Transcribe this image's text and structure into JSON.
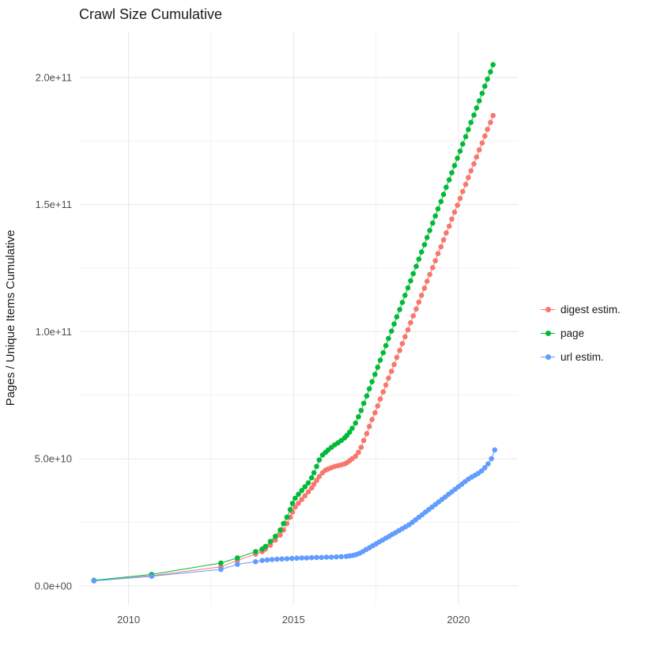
{
  "chart_data": {
    "type": "scatter",
    "title": "Crawl Size Cumulative",
    "xlabel": "",
    "ylabel": "Pages / Unique Items Cumulative",
    "y_scale_note": "all y point values and y tick values are in units of 1e9 (billions)",
    "xlim": [
      2008.5,
      2021.8
    ],
    "ylim": [
      -7.5,
      218
    ],
    "grid": true,
    "legend_position": "right",
    "colors": {
      "grid_major": "#E8E8E8",
      "grid_minor": "#F3F3F3",
      "background": "#FFFFFF",
      "tick_text": "#4D4D4D"
    },
    "x_ticks": [
      {
        "value": 2010,
        "label": "2010"
      },
      {
        "value": 2015,
        "label": "2015"
      },
      {
        "value": 2020,
        "label": "2020"
      }
    ],
    "x_minor_ticks": [
      2012.5,
      2017.5
    ],
    "y_ticks": [
      {
        "value": 0,
        "label": "0.0e+00"
      },
      {
        "value": 50,
        "label": "5.0e+10"
      },
      {
        "value": 100,
        "label": "1.0e+11"
      },
      {
        "value": 150,
        "label": "1.5e+11"
      },
      {
        "value": 200,
        "label": "2.0e+11"
      }
    ],
    "y_minor_ticks": [
      25,
      75,
      125,
      175
    ],
    "series": [
      {
        "name": "digest estim.",
        "color": "#F8766D",
        "points": [
          [
            2008.95,
            2.0
          ],
          [
            2010.7,
            4.0
          ],
          [
            2012.8,
            7.5
          ],
          [
            2013.3,
            10.0
          ],
          [
            2013.85,
            12.5
          ],
          [
            2014.05,
            13.5
          ],
          [
            2014.15,
            14.5
          ],
          [
            2014.3,
            16.0
          ],
          [
            2014.45,
            18.0
          ],
          [
            2014.6,
            20.0
          ],
          [
            2014.7,
            22.0
          ],
          [
            2014.8,
            24.5
          ],
          [
            2014.9,
            27.0
          ],
          [
            2014.97,
            29.0
          ],
          [
            2015.05,
            31.0
          ],
          [
            2015.15,
            32.5
          ],
          [
            2015.25,
            34.0
          ],
          [
            2015.35,
            35.5
          ],
          [
            2015.45,
            37.0
          ],
          [
            2015.55,
            38.5
          ],
          [
            2015.62,
            40.0
          ],
          [
            2015.7,
            41.5
          ],
          [
            2015.78,
            43.0
          ],
          [
            2015.88,
            44.5
          ],
          [
            2015.97,
            45.5
          ],
          [
            2016.05,
            46.0
          ],
          [
            2016.15,
            46.5
          ],
          [
            2016.25,
            47.0
          ],
          [
            2016.35,
            47.3
          ],
          [
            2016.45,
            47.6
          ],
          [
            2016.55,
            48.0
          ],
          [
            2016.62,
            48.5
          ],
          [
            2016.7,
            49.2
          ],
          [
            2016.78,
            50.0
          ],
          [
            2016.88,
            51.0
          ],
          [
            2016.97,
            52.5
          ],
          [
            2017.05,
            54.5
          ],
          [
            2017.13,
            57.2
          ],
          [
            2017.22,
            59.9
          ],
          [
            2017.3,
            62.7
          ],
          [
            2017.38,
            65.4
          ],
          [
            2017.47,
            68.1
          ],
          [
            2017.55,
            70.8
          ],
          [
            2017.63,
            73.5
          ],
          [
            2017.72,
            76.3
          ],
          [
            2017.8,
            79.0
          ],
          [
            2017.88,
            81.7
          ],
          [
            2017.97,
            84.4
          ],
          [
            2018.05,
            87.1
          ],
          [
            2018.13,
            89.9
          ],
          [
            2018.22,
            92.6
          ],
          [
            2018.3,
            95.3
          ],
          [
            2018.38,
            98.0
          ],
          [
            2018.47,
            100.7
          ],
          [
            2018.55,
            103.5
          ],
          [
            2018.63,
            106.2
          ],
          [
            2018.72,
            108.9
          ],
          [
            2018.8,
            111.6
          ],
          [
            2018.88,
            114.3
          ],
          [
            2018.97,
            117.1
          ],
          [
            2019.05,
            119.8
          ],
          [
            2019.13,
            122.5
          ],
          [
            2019.22,
            125.2
          ],
          [
            2019.3,
            127.9
          ],
          [
            2019.38,
            130.7
          ],
          [
            2019.47,
            133.4
          ],
          [
            2019.55,
            136.1
          ],
          [
            2019.63,
            138.8
          ],
          [
            2019.72,
            141.5
          ],
          [
            2019.8,
            144.3
          ],
          [
            2019.88,
            147.0
          ],
          [
            2019.97,
            149.7
          ],
          [
            2020.05,
            152.4
          ],
          [
            2020.13,
            155.1
          ],
          [
            2020.22,
            157.9
          ],
          [
            2020.3,
            160.6
          ],
          [
            2020.38,
            163.3
          ],
          [
            2020.47,
            166.0
          ],
          [
            2020.55,
            168.7
          ],
          [
            2020.63,
            171.5
          ],
          [
            2020.72,
            174.2
          ],
          [
            2020.8,
            176.9
          ],
          [
            2020.88,
            179.6
          ],
          [
            2020.97,
            182.3
          ],
          [
            2021.05,
            185.0
          ]
        ]
      },
      {
        "name": "page",
        "color": "#00BA38",
        "points": [
          [
            2008.95,
            2.2
          ],
          [
            2010.7,
            4.5
          ],
          [
            2012.8,
            9.0
          ],
          [
            2013.3,
            11.0
          ],
          [
            2013.85,
            13.5
          ],
          [
            2014.05,
            14.5
          ],
          [
            2014.15,
            15.5
          ],
          [
            2014.3,
            17.5
          ],
          [
            2014.45,
            19.5
          ],
          [
            2014.6,
            22.0
          ],
          [
            2014.7,
            24.5
          ],
          [
            2014.8,
            27.0
          ],
          [
            2014.9,
            30.0
          ],
          [
            2014.97,
            32.5
          ],
          [
            2015.05,
            34.5
          ],
          [
            2015.15,
            36.0
          ],
          [
            2015.25,
            37.5
          ],
          [
            2015.35,
            39.0
          ],
          [
            2015.45,
            40.5
          ],
          [
            2015.55,
            42.5
          ],
          [
            2015.62,
            44.5
          ],
          [
            2015.7,
            47.0
          ],
          [
            2015.78,
            49.5
          ],
          [
            2015.88,
            51.5
          ],
          [
            2015.97,
            52.5
          ],
          [
            2016.05,
            53.5
          ],
          [
            2016.15,
            54.5
          ],
          [
            2016.25,
            55.5
          ],
          [
            2016.35,
            56.3
          ],
          [
            2016.45,
            57.2
          ],
          [
            2016.55,
            58.2
          ],
          [
            2016.62,
            59.2
          ],
          [
            2016.7,
            60.5
          ],
          [
            2016.78,
            62.0
          ],
          [
            2016.88,
            64.0
          ],
          [
            2016.97,
            66.5
          ],
          [
            2017.05,
            69.0
          ],
          [
            2017.13,
            71.8
          ],
          [
            2017.22,
            74.7
          ],
          [
            2017.3,
            77.5
          ],
          [
            2017.38,
            80.3
          ],
          [
            2017.47,
            83.2
          ],
          [
            2017.55,
            86.0
          ],
          [
            2017.63,
            88.8
          ],
          [
            2017.72,
            91.7
          ],
          [
            2017.8,
            94.5
          ],
          [
            2017.88,
            97.3
          ],
          [
            2017.97,
            100.2
          ],
          [
            2018.05,
            103.0
          ],
          [
            2018.13,
            105.8
          ],
          [
            2018.22,
            108.7
          ],
          [
            2018.3,
            111.5
          ],
          [
            2018.38,
            114.3
          ],
          [
            2018.47,
            117.2
          ],
          [
            2018.55,
            120.0
          ],
          [
            2018.63,
            122.8
          ],
          [
            2018.72,
            125.7
          ],
          [
            2018.8,
            128.5
          ],
          [
            2018.88,
            131.3
          ],
          [
            2018.97,
            134.2
          ],
          [
            2019.05,
            137.0
          ],
          [
            2019.13,
            139.8
          ],
          [
            2019.22,
            142.7
          ],
          [
            2019.3,
            145.5
          ],
          [
            2019.38,
            148.3
          ],
          [
            2019.47,
            151.2
          ],
          [
            2019.55,
            154.0
          ],
          [
            2019.63,
            156.8
          ],
          [
            2019.72,
            159.7
          ],
          [
            2019.8,
            162.5
          ],
          [
            2019.88,
            165.3
          ],
          [
            2019.97,
            168.2
          ],
          [
            2020.05,
            171.0
          ],
          [
            2020.13,
            173.8
          ],
          [
            2020.22,
            176.7
          ],
          [
            2020.3,
            179.5
          ],
          [
            2020.38,
            182.3
          ],
          [
            2020.47,
            185.2
          ],
          [
            2020.55,
            188.0
          ],
          [
            2020.63,
            190.8
          ],
          [
            2020.72,
            193.7
          ],
          [
            2020.8,
            196.5
          ],
          [
            2020.88,
            199.3
          ],
          [
            2020.97,
            202.2
          ],
          [
            2021.05,
            205.0
          ]
        ]
      },
      {
        "name": "url estim.",
        "color": "#619CFF",
        "points": [
          [
            2008.95,
            2.0
          ],
          [
            2010.7,
            3.8
          ],
          [
            2012.8,
            6.5
          ],
          [
            2013.3,
            8.5
          ],
          [
            2013.85,
            9.5
          ],
          [
            2014.05,
            10.0
          ],
          [
            2014.2,
            10.2
          ],
          [
            2014.35,
            10.4
          ],
          [
            2014.5,
            10.5
          ],
          [
            2014.65,
            10.6
          ],
          [
            2014.8,
            10.7
          ],
          [
            2014.95,
            10.8
          ],
          [
            2015.1,
            10.9
          ],
          [
            2015.25,
            11.0
          ],
          [
            2015.4,
            11.0
          ],
          [
            2015.55,
            11.1
          ],
          [
            2015.7,
            11.2
          ],
          [
            2015.85,
            11.2
          ],
          [
            2016.0,
            11.3
          ],
          [
            2016.15,
            11.3
          ],
          [
            2016.3,
            11.4
          ],
          [
            2016.45,
            11.5
          ],
          [
            2016.6,
            11.6
          ],
          [
            2016.7,
            11.8
          ],
          [
            2016.8,
            12.0
          ],
          [
            2016.9,
            12.3
          ],
          [
            2017.0,
            12.8
          ],
          [
            2017.1,
            13.5
          ],
          [
            2017.2,
            14.3
          ],
          [
            2017.3,
            15.0
          ],
          [
            2017.4,
            15.8
          ],
          [
            2017.5,
            16.5
          ],
          [
            2017.6,
            17.3
          ],
          [
            2017.7,
            18.0
          ],
          [
            2017.8,
            18.8
          ],
          [
            2017.9,
            19.5
          ],
          [
            2018.0,
            20.3
          ],
          [
            2018.1,
            21.0
          ],
          [
            2018.2,
            21.8
          ],
          [
            2018.3,
            22.5
          ],
          [
            2018.4,
            23.3
          ],
          [
            2018.5,
            24.0
          ],
          [
            2018.6,
            25.0
          ],
          [
            2018.7,
            26.0
          ],
          [
            2018.8,
            27.0
          ],
          [
            2018.9,
            28.0
          ],
          [
            2019.0,
            29.0
          ],
          [
            2019.1,
            30.0
          ],
          [
            2019.2,
            31.0
          ],
          [
            2019.3,
            32.0
          ],
          [
            2019.4,
            33.0
          ],
          [
            2019.5,
            34.0
          ],
          [
            2019.6,
            35.0
          ],
          [
            2019.7,
            36.0
          ],
          [
            2019.8,
            37.0
          ],
          [
            2019.9,
            38.0
          ],
          [
            2020.0,
            39.0
          ],
          [
            2020.1,
            40.0
          ],
          [
            2020.2,
            41.0
          ],
          [
            2020.3,
            42.0
          ],
          [
            2020.4,
            42.8
          ],
          [
            2020.5,
            43.5
          ],
          [
            2020.6,
            44.3
          ],
          [
            2020.7,
            45.2
          ],
          [
            2020.8,
            46.5
          ],
          [
            2020.9,
            48.0
          ],
          [
            2021.0,
            50.0
          ],
          [
            2021.1,
            53.5
          ]
        ]
      }
    ]
  }
}
